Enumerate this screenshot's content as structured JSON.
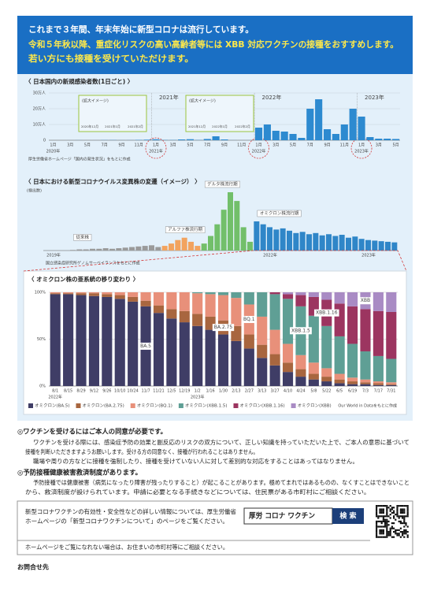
{
  "header": {
    "lines": [
      "これまで３年間、年末年始に新型コロナは流行しています。",
      "令和５年秋以降、重症化リスクの高い高齢者等には XBB 対応ワクチンの接種をおすすめします。",
      "若い方にも接種を受けていただけます。"
    ]
  },
  "chart_data": [
    {
      "type": "bar",
      "title": "〈 日本国内の新規感染者数(1日ごと) 〉",
      "color": "#2d8ad0",
      "grid": true,
      "categories": [
        "1月",
        null,
        "3月",
        null,
        "5月",
        null,
        "7月",
        null,
        "9月",
        null,
        "11月",
        null,
        "1月",
        null,
        "3月",
        null,
        "5月",
        null,
        "7月",
        null,
        "9月",
        null,
        "11月",
        null,
        "1月",
        null,
        "3月",
        null,
        "5月",
        null,
        "7月",
        null,
        "9月",
        null,
        "11月",
        null,
        "1月",
        null,
        "3月",
        null,
        "5月"
      ],
      "x_years": [
        "2020年",
        null,
        null,
        null,
        null,
        null,
        null,
        null,
        null,
        null,
        null,
        null,
        "2021年",
        null,
        null,
        null,
        null,
        null,
        null,
        null,
        null,
        null,
        null,
        null,
        "2022年",
        null,
        null,
        null,
        null,
        null,
        null,
        null,
        null,
        null,
        null,
        null,
        "2023年",
        null,
        null,
        null,
        null
      ],
      "top_labels": [
        null,
        null,
        null,
        null,
        null,
        null,
        null,
        null,
        null,
        null,
        null,
        null,
        "2021年",
        null,
        null,
        null,
        null,
        null,
        null,
        null,
        null,
        null,
        null,
        null,
        "2022年",
        null,
        null,
        null,
        null,
        null,
        null,
        null,
        null,
        null,
        null,
        null,
        "2023年",
        null,
        null,
        null,
        null
      ],
      "values": [
        0,
        0,
        100,
        500,
        100,
        50,
        1000,
        1200,
        500,
        600,
        2000,
        3500,
        6000,
        1500,
        1500,
        5000,
        6500,
        1500,
        8000,
        25000,
        5000,
        500,
        150,
        300,
        80000,
        100000,
        60000,
        55000,
        40000,
        15000,
        200000,
        260000,
        70000,
        40000,
        100000,
        200000,
        150000,
        20000,
        10000,
        10000,
        8000
      ],
      "ylim": [
        0,
        300000
      ],
      "yticks": [
        0,
        {
          "value": 100000,
          "label": "10万人"
        },
        {
          "value": 200000,
          "label": "20万人"
        },
        {
          "value": 300000,
          "label": "30万人"
        }
      ],
      "insets": [
        {
          "title": "(拡大イメージ)",
          "labels": [
            "2020年12月",
            "2021年1月",
            "2021年2月"
          ]
        },
        {
          "title": "(拡大イメージ)",
          "labels": [
            "2021年12月",
            "2022年1月",
            "2022年2月"
          ]
        }
      ],
      "source": "厚生労働省ホームページ「国内の発生状況」をもとに作成"
    },
    {
      "type": "bar",
      "title": "〈 日本における新型コロナウイルス変異株の変遷（イメージ） 〉",
      "y_label": "(検出数)",
      "categories": [
        "2019年",
        null,
        null,
        null,
        null,
        null,
        null,
        null,
        null,
        null,
        null,
        null,
        null,
        null,
        null,
        null,
        null,
        null,
        null,
        null,
        null,
        null,
        null,
        null,
        null,
        null,
        null,
        null,
        null,
        null,
        null,
        null,
        null,
        "2022年",
        null,
        null,
        null,
        null,
        null,
        null,
        null,
        null,
        null,
        null,
        null,
        null,
        null,
        null,
        "2023年",
        null,
        null,
        null,
        null,
        null
      ],
      "series": [
        {
          "name": "従来株",
          "color": "#9a9a9a",
          "values": [
            null,
            null,
            null,
            null,
            1,
            2,
            2,
            3,
            3,
            4,
            3,
            4,
            5,
            6,
            7,
            8,
            9,
            6,
            null,
            null,
            null,
            null,
            null,
            null,
            null,
            null,
            null,
            null,
            null,
            null,
            null,
            null,
            null,
            null,
            null,
            null,
            null,
            null,
            null,
            null,
            null,
            null,
            null,
            null,
            null,
            null,
            null,
            null,
            null,
            null,
            null,
            null,
            null,
            null
          ]
        },
        {
          "name": "アルファ株流行期",
          "color": "#f2a35e",
          "values": [
            null,
            null,
            null,
            null,
            null,
            null,
            null,
            null,
            null,
            null,
            null,
            null,
            null,
            null,
            null,
            null,
            null,
            null,
            8,
            12,
            18,
            22,
            15,
            8,
            null,
            null,
            null,
            null,
            null,
            null,
            null,
            null,
            null,
            null,
            null,
            null,
            null,
            null,
            null,
            null,
            null,
            null,
            null,
            null,
            null,
            null,
            null,
            null,
            null,
            null,
            null,
            null,
            null,
            null
          ]
        },
        {
          "name": "デルタ株流行期",
          "color": "#72bf6a",
          "values": [
            null,
            null,
            null,
            null,
            null,
            null,
            null,
            null,
            null,
            null,
            null,
            null,
            null,
            null,
            null,
            null,
            null,
            null,
            null,
            null,
            null,
            null,
            null,
            null,
            12,
            25,
            45,
            70,
            100,
            85,
            40,
            15,
            null,
            null,
            null,
            null,
            null,
            null,
            null,
            null,
            null,
            null,
            null,
            null,
            null,
            null,
            null,
            null,
            null,
            null,
            null,
            null,
            null,
            null
          ]
        },
        {
          "name": "オミクロン株流行期",
          "color": "#2f86c8",
          "values": [
            null,
            null,
            null,
            null,
            null,
            null,
            null,
            null,
            null,
            null,
            null,
            null,
            null,
            null,
            null,
            null,
            null,
            null,
            null,
            null,
            null,
            null,
            null,
            null,
            null,
            null,
            null,
            null,
            null,
            null,
            null,
            null,
            50,
            45,
            40,
            36,
            38,
            34,
            30,
            32,
            28,
            30,
            26,
            28,
            25,
            27,
            22,
            24,
            20,
            18,
            17,
            16,
            15,
            14
          ]
        }
      ],
      "source": "国立感染症研究所ゲノムサーベイランスをもとに作成"
    },
    {
      "type": "stacked_bar",
      "title": "〈 オミクロン株の亜系統の移り変わり 〉",
      "categories": [
        "8/1",
        "8/15",
        "8/29",
        "9/12",
        "9/26",
        "10/10",
        "10/24",
        "11/7",
        "11/21",
        "12/5",
        "12/19",
        "1/2",
        "1/16",
        "1/30",
        "2/13",
        "2/27",
        "3/13",
        "3/27",
        "4/10",
        "4/24",
        "5/8",
        "5/22",
        "6/5",
        "6/19",
        "7/3",
        "7/17",
        "7/31"
      ],
      "x_years": [
        "2022年",
        null,
        null,
        null,
        null,
        null,
        null,
        null,
        null,
        null,
        null,
        "2023年",
        null,
        null,
        null,
        null,
        null,
        null,
        null,
        null,
        null,
        null,
        null,
        null,
        null,
        null,
        null
      ],
      "ylim": [
        0,
        100
      ],
      "yticks": [
        {
          "value": 0,
          "label": "0%"
        },
        {
          "value": 50,
          "label": "50%"
        },
        {
          "value": 100,
          "label": "100%"
        }
      ],
      "series": [
        {
          "name": "オミクロン(BA.5)",
          "label": "BA.5",
          "color": "#3f3d66",
          "values": [
            98,
            98,
            97,
            96,
            95,
            93,
            90,
            85,
            78,
            72,
            68,
            64,
            60,
            55,
            48,
            40,
            30,
            22,
            15,
            10,
            7,
            5,
            3,
            2,
            2,
            1,
            1
          ]
        },
        {
          "name": "オミクロン(BA.2.75)",
          "label": "BA.2.75",
          "color": "#a8663f",
          "values": [
            1,
            1,
            2,
            3,
            3,
            4,
            5,
            6,
            8,
            10,
            12,
            13,
            14,
            15,
            16,
            15,
            14,
            12,
            10,
            8,
            6,
            5,
            4,
            3,
            2,
            2,
            1
          ]
        },
        {
          "name": "オミクロン(BQ.1)",
          "label": "BQ.1",
          "color": "#e8907a",
          "values": [
            1,
            1,
            1,
            1,
            2,
            3,
            5,
            9,
            14,
            18,
            20,
            22,
            24,
            27,
            30,
            32,
            30,
            26,
            20,
            15,
            12,
            9,
            6,
            4,
            3,
            2,
            2
          ]
        },
        {
          "name": "オミクロン(XBB.1.5)",
          "label": "XBB.1.5",
          "color": "#5f9f95",
          "values": [
            0,
            0,
            0,
            0,
            0,
            0,
            0,
            0,
            0,
            0,
            0,
            1,
            2,
            3,
            6,
            13,
            26,
            38,
            48,
            52,
            50,
            45,
            40,
            36,
            30,
            27,
            25
          ]
        },
        {
          "name": "オミクロン(XBB.1.16)",
          "label": "XBB.1.16",
          "color": "#9c3560",
          "values": [
            0,
            0,
            0,
            0,
            0,
            0,
            0,
            0,
            0,
            0,
            0,
            0,
            0,
            0,
            0,
            0,
            0,
            2,
            5,
            12,
            20,
            28,
            35,
            40,
            45,
            48,
            50
          ]
        },
        {
          "name": "オミクロン(XBB)",
          "label": "XBB",
          "color": "#a98bc4",
          "values": [
            0,
            0,
            0,
            0,
            0,
            0,
            0,
            0,
            0,
            0,
            0,
            0,
            0,
            0,
            0,
            0,
            0,
            0,
            2,
            3,
            5,
            8,
            12,
            15,
            18,
            20,
            21
          ]
        }
      ],
      "source": "Our World in Dataをもとに作成"
    }
  ],
  "notes": [
    {
      "heading": "◎ワクチンを受けるにはご本人の同意が必要です。",
      "paragraphs": [
        [
          "ワクチンを受ける際には、感染症予防の効果と副反応のリスクの双方について、正しい知識を持っていただいた上で、ご本人の意思に基づいて",
          "接種を判断いただきますようお願いします。受ける方の同意なく、接種が行われることはありません。"
        ],
        [
          "職場や周りの方などに接種を強制したり、接種を受けていない人に対して差別的な対応をすることはあってはなりません。"
        ]
      ]
    },
    {
      "heading": "◎予防接種健康被害救済制度があります。",
      "paragraphs": [
        [
          "予防接種では健康被害（病気になったり障害が残ったりすること）が起こることがあります。極めてまれではあるものの、なくすことはできないこと",
          "から、救済制度が設けられています。申請に必要となる手続きなどについては、住民票がある市町村にご相談ください。"
        ]
      ]
    }
  ],
  "info_box": {
    "lines": [
      "新型コロナワクチンの有効性・安全性などの詳しい情報については、厚生労働省",
      "ホームページの「新型コロナワクチンについて」のページをご覧ください。"
    ],
    "search_text": "厚労 コロナ ワクチン",
    "search_button": "検 索",
    "footer": "ホームページをご覧になれない場合は、お住まいの市町村等にご相談ください。"
  },
  "contact": "お問合せ先"
}
